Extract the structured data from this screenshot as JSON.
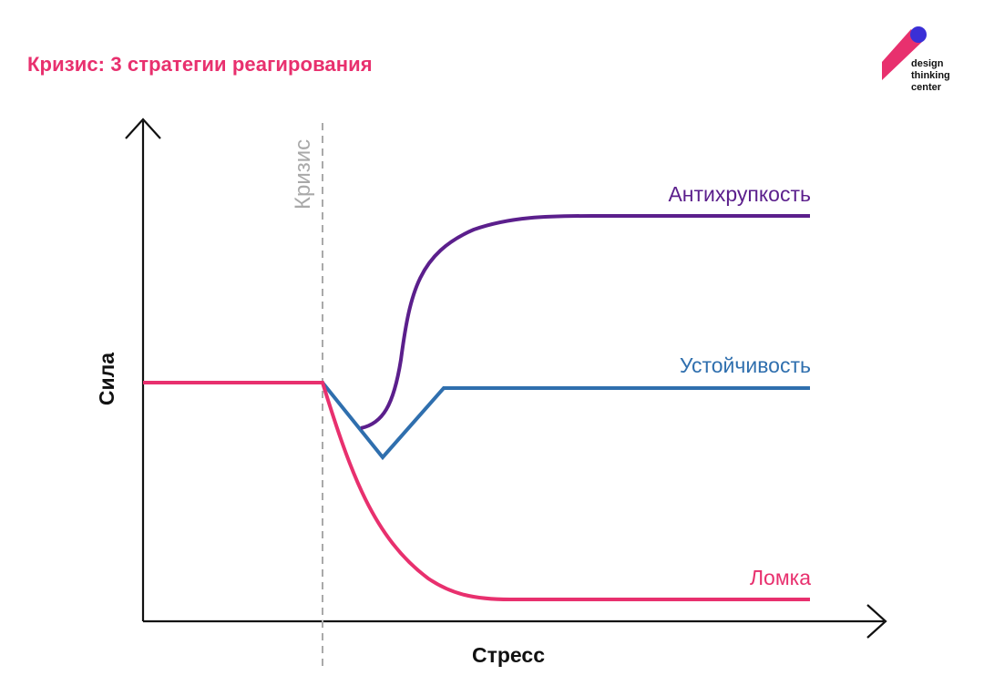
{
  "header": {
    "title": "Кризис: 3 стратегии реагирования",
    "title_color": "#e8306e"
  },
  "logo": {
    "lines": [
      "design",
      "thinking",
      "center"
    ],
    "accent_color": "#e8306e",
    "dot_color": "#3a2fd6"
  },
  "diagram": {
    "y_axis_label": "Сила",
    "x_axis_label": "Стресс",
    "crisis_label": "Кризис",
    "crisis_color": "#a9a9a9",
    "curves": [
      {
        "name": "antifragility",
        "label": "Антихрупкость",
        "color": "#5b1f8c"
      },
      {
        "name": "resilience",
        "label": "Устойчивость",
        "color": "#2f6fae"
      },
      {
        "name": "breakdown",
        "label": "Ломка",
        "color": "#e8306e"
      }
    ]
  }
}
